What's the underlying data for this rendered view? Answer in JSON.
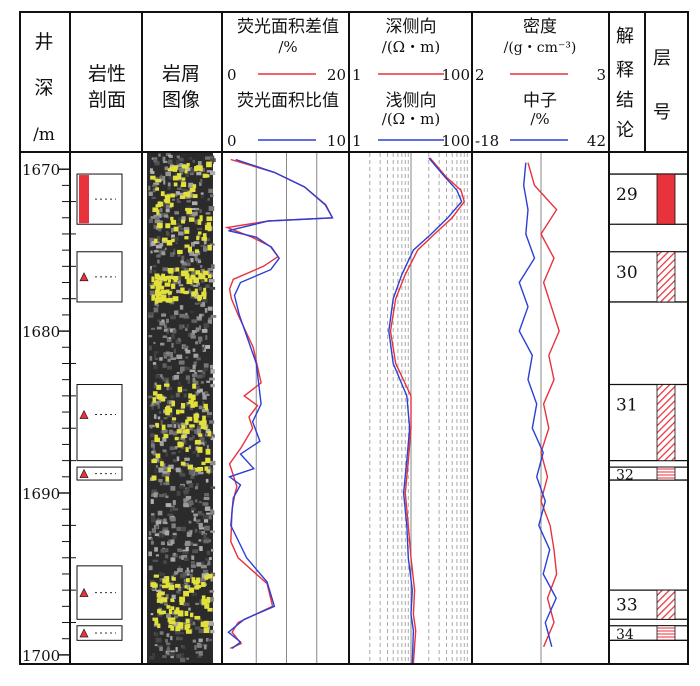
{
  "header": {
    "depth": [
      "井",
      "深",
      "/m"
    ],
    "lithology": [
      "岩性",
      "剖面"
    ],
    "cuttings": [
      "岩屑",
      "图像"
    ],
    "fluor_diff": {
      "title": "荧光面积差值",
      "unit": "/%",
      "min": "0",
      "max": "20"
    },
    "fluor_ratio": {
      "title": "荧光面积比值",
      "min": "0",
      "max": "10"
    },
    "deep_lat": {
      "title": "深侧向",
      "unit": "/(Ω・m)",
      "min": "1",
      "max": "100"
    },
    "shallow_lat": {
      "title": "浅侧向",
      "unit": "/(Ω・m)",
      "min": "1",
      "max": "100"
    },
    "density": {
      "title": "密度",
      "unit": "/(g・cm⁻³)",
      "min": "2",
      "max": "3"
    },
    "neutron": {
      "title": "中子",
      "unit": "/%",
      "min": "-18",
      "max": "42"
    },
    "interp": [
      "解",
      "释",
      "结",
      "论"
    ],
    "layer": [
      "层",
      "号"
    ]
  },
  "depth_ticks": [
    "1670",
    "1680",
    "1690",
    "1700"
  ],
  "layers": [
    {
      "no": "29",
      "top": 1670.3,
      "bottom": 1673.4,
      "fill": "solid"
    },
    {
      "no": "30",
      "top": 1675.1,
      "bottom": 1678.2,
      "fill": "hatch"
    },
    {
      "no": "31",
      "top": 1683.3,
      "bottom": 1688.0,
      "fill": "hatch"
    },
    {
      "no": "32",
      "top": 1688.4,
      "bottom": 1689.2,
      "fill": "lines"
    },
    {
      "no": "33",
      "top": 1696.0,
      "bottom": 1697.8,
      "fill": "hatch"
    },
    {
      "no": "34",
      "top": 1698.2,
      "bottom": 1699.1,
      "fill": "lines"
    }
  ],
  "lithology_boxes": [
    {
      "top": 1670.3,
      "bottom": 1673.4,
      "symbol": "rect"
    },
    {
      "top": 1675.1,
      "bottom": 1678.2,
      "symbol": "triangle"
    },
    {
      "top": 1683.3,
      "bottom": 1688.0,
      "symbol": "triangle"
    },
    {
      "top": 1688.4,
      "bottom": 1689.2,
      "symbol": "triangle"
    },
    {
      "top": 1694.5,
      "bottom": 1697.8,
      "symbol": "triangle"
    },
    {
      "top": 1698.2,
      "bottom": 1699.1,
      "symbol": "triangle"
    }
  ],
  "colors": {
    "red": "#e8323c",
    "blue": "#2b3fd6",
    "yellow": "#e2e03a",
    "grid": "#888888"
  },
  "chart_data": {
    "type": "line",
    "y_axis": {
      "label": "井深/m",
      "range": [
        1669,
        1700.5
      ],
      "inverted": true
    },
    "fluor_diff": {
      "range": [
        0,
        20
      ],
      "color": "red",
      "points": [
        [
          1669.4,
          0.8
        ],
        [
          1670.2,
          8
        ],
        [
          1671.1,
          13
        ],
        [
          1672.2,
          16.5
        ],
        [
          1673.0,
          17.6
        ],
        [
          1673.2,
          7
        ],
        [
          1673.6,
          0.2
        ],
        [
          1674.2,
          4.3
        ],
        [
          1674.8,
          7.5
        ],
        [
          1675.4,
          8.6
        ],
        [
          1676.0,
          6.2
        ],
        [
          1676.8,
          1.2
        ],
        [
          1677.4,
          0.6
        ],
        [
          1678.0,
          0.9
        ],
        [
          1679.0,
          2
        ],
        [
          1681.0,
          4.5
        ],
        [
          1683.2,
          5.8
        ],
        [
          1684.0,
          3
        ],
        [
          1684.6,
          5.2
        ],
        [
          1685.3,
          3.8
        ],
        [
          1686.0,
          4.4
        ],
        [
          1687.2,
          2.5
        ],
        [
          1688.2,
          0.6
        ],
        [
          1689.6,
          1.8
        ],
        [
          1690.0,
          1.5
        ],
        [
          1691.0,
          1
        ],
        [
          1693.0,
          0.8
        ],
        [
          1694.0,
          2
        ],
        [
          1695.6,
          6.8
        ],
        [
          1697.0,
          7.7
        ],
        [
          1698.0,
          2
        ],
        [
          1698.6,
          1
        ],
        [
          1699.3,
          2.5
        ],
        [
          1699.6,
          0.7
        ]
      ]
    },
    "fluor_ratio": {
      "range": [
        0,
        10
      ],
      "color": "blue",
      "points": [
        [
          1669.4,
          0.8
        ],
        [
          1670.2,
          4
        ],
        [
          1671.1,
          6.5
        ],
        [
          1672.2,
          8.2
        ],
        [
          1673.0,
          8.8
        ],
        [
          1673.2,
          3.5
        ],
        [
          1673.8,
          0.2
        ],
        [
          1674.2,
          2.5
        ],
        [
          1674.8,
          3.7
        ],
        [
          1675.5,
          4.4
        ],
        [
          1676.2,
          3.7
        ],
        [
          1677.0,
          1.2
        ],
        [
          1677.8,
          0.7
        ],
        [
          1679.0,
          1.1
        ],
        [
          1682.0,
          2.5
        ],
        [
          1684.5,
          2.9
        ],
        [
          1685.6,
          2.2
        ],
        [
          1686.8,
          2.8
        ],
        [
          1687.6,
          1.2
        ],
        [
          1688.5,
          2.3
        ],
        [
          1689.0,
          0.3
        ],
        [
          1689.5,
          1.2
        ],
        [
          1690.3,
          0.6
        ],
        [
          1692.0,
          0.4
        ],
        [
          1694.0,
          1.7
        ],
        [
          1695.5,
          3.4
        ],
        [
          1697.0,
          4
        ],
        [
          1697.8,
          1.5
        ],
        [
          1698.6,
          0.2
        ],
        [
          1699.2,
          1.2
        ],
        [
          1699.6,
          0.5
        ]
      ]
    },
    "deep_lat": {
      "range": [
        1,
        100
      ],
      "scale": "log",
      "color": "red",
      "points": [
        [
          1669.3,
          21
        ],
        [
          1670.5,
          40
        ],
        [
          1671.3,
          70
        ],
        [
          1672.0,
          80
        ],
        [
          1673.0,
          50
        ],
        [
          1674.0,
          25
        ],
        [
          1675.0,
          13
        ],
        [
          1676.5,
          8
        ],
        [
          1678.0,
          5.5
        ],
        [
          1680.0,
          4.5
        ],
        [
          1682.0,
          5.5
        ],
        [
          1684.0,
          10
        ],
        [
          1686.0,
          10
        ],
        [
          1688.0,
          9
        ],
        [
          1690.0,
          8
        ],
        [
          1692.0,
          9
        ],
        [
          1694.0,
          10
        ],
        [
          1696.0,
          11.5
        ],
        [
          1697.5,
          11
        ],
        [
          1698.5,
          12
        ],
        [
          1700.5,
          11
        ]
      ]
    },
    "shallow_lat": {
      "range": [
        1,
        100
      ],
      "scale": "log",
      "color": "blue",
      "points": [
        [
          1669.3,
          20
        ],
        [
          1670.5,
          38
        ],
        [
          1671.3,
          60
        ],
        [
          1672.0,
          72
        ],
        [
          1673.0,
          42
        ],
        [
          1674.0,
          22
        ],
        [
          1675.0,
          11
        ],
        [
          1676.5,
          7
        ],
        [
          1678.0,
          5
        ],
        [
          1680.0,
          4.2
        ],
        [
          1682.0,
          5
        ],
        [
          1684.0,
          8.5
        ],
        [
          1686.0,
          9.5
        ],
        [
          1688.0,
          8.5
        ],
        [
          1690.0,
          7.5
        ],
        [
          1692.0,
          8.5
        ],
        [
          1694.0,
          9
        ],
        [
          1696.0,
          10.5
        ],
        [
          1697.5,
          10
        ],
        [
          1698.5,
          11
        ],
        [
          1700.5,
          10.5
        ]
      ]
    },
    "density": {
      "range": [
        2,
        3
      ],
      "color": "red",
      "points": [
        [
          1669.6,
          2.4
        ],
        [
          1671.0,
          2.45
        ],
        [
          1672.5,
          2.62
        ],
        [
          1674.0,
          2.5
        ],
        [
          1675.5,
          2.6
        ],
        [
          1677.0,
          2.52
        ],
        [
          1678.5,
          2.58
        ],
        [
          1680.0,
          2.64
        ],
        [
          1681.5,
          2.56
        ],
        [
          1683.0,
          2.6
        ],
        [
          1684.5,
          2.52
        ],
        [
          1686.0,
          2.56
        ],
        [
          1687.5,
          2.5
        ],
        [
          1689.0,
          2.55
        ],
        [
          1690.5,
          2.5
        ],
        [
          1692.0,
          2.57
        ],
        [
          1693.5,
          2.6
        ],
        [
          1695.0,
          2.62
        ],
        [
          1696.5,
          2.55
        ],
        [
          1698.0,
          2.6
        ],
        [
          1699.5,
          2.52
        ]
      ]
    },
    "neutron": {
      "range": [
        -18,
        42
      ],
      "color": "blue",
      "points": [
        [
          1669.6,
          5
        ],
        [
          1671.0,
          4
        ],
        [
          1672.5,
          6
        ],
        [
          1674.0,
          5
        ],
        [
          1675.5,
          9
        ],
        [
          1677.0,
          2
        ],
        [
          1678.5,
          6
        ],
        [
          1680.0,
          2
        ],
        [
          1681.5,
          8
        ],
        [
          1683.0,
          6
        ],
        [
          1684.5,
          10
        ],
        [
          1686.0,
          8
        ],
        [
          1687.5,
          13
        ],
        [
          1689.0,
          10
        ],
        [
          1690.5,
          14
        ],
        [
          1692.0,
          11
        ],
        [
          1693.5,
          16
        ],
        [
          1695.0,
          13
        ],
        [
          1696.5,
          19
        ],
        [
          1698.0,
          14
        ],
        [
          1699.5,
          17
        ]
      ]
    }
  }
}
